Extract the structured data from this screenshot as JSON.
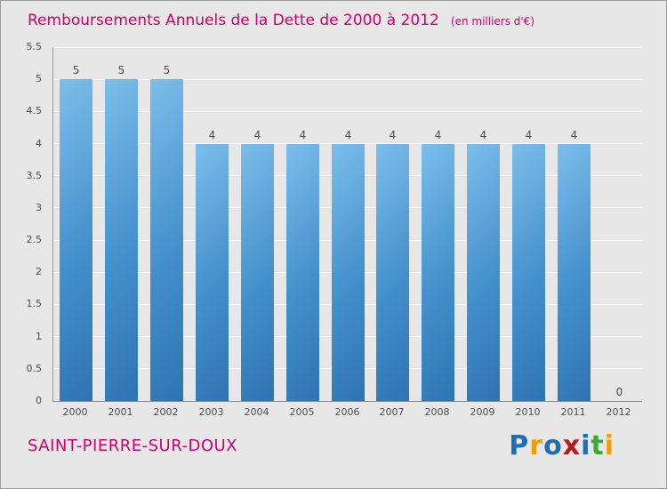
{
  "title": "Remboursements Annuels de la Dette de 2000 à 2012",
  "subtitle": "(en milliers d'€)",
  "footer": {
    "commune": "SAINT-PIERRE-SUR-DOUX"
  },
  "logo": {
    "letters": [
      {
        "ch": "P",
        "color": "#1e6db6"
      },
      {
        "ch": "r",
        "color": "#f59c00"
      },
      {
        "ch": "o",
        "color": "#1e6db6"
      },
      {
        "ch": "x",
        "color": "#c0181a"
      },
      {
        "ch": "i",
        "color": "#1e6db6"
      },
      {
        "ch": "t",
        "color": "#3aaa35"
      },
      {
        "ch": "i",
        "color": "#f59c00"
      }
    ]
  },
  "colors": {
    "title": "#d10069",
    "background": "#e7e7e7",
    "axis": "#8a8a8a",
    "gridline": "#ffffff",
    "tick_text": "#4d4d4d"
  },
  "chart_data": {
    "type": "bar",
    "title": "Remboursements Annuels de la Dette de 2000 à 2012",
    "subtitle": "(en milliers d'€)",
    "xlabel": "",
    "ylabel": "",
    "categories": [
      "2000",
      "2001",
      "2002",
      "2003",
      "2004",
      "2005",
      "2006",
      "2007",
      "2008",
      "2009",
      "2010",
      "2011",
      "2012"
    ],
    "values": [
      5,
      5,
      5,
      4,
      4,
      4,
      4,
      4,
      4,
      4,
      4,
      4,
      0
    ],
    "ylim": [
      0,
      5.5
    ],
    "ytick_step": 0.5,
    "yticks": [
      "0",
      "0.5",
      "1",
      "1.5",
      "2",
      "2.5",
      "3",
      "3.5",
      "4",
      "4.5",
      "5",
      "5.5"
    ],
    "grid": true,
    "legend": "none",
    "bar_colors": [
      "#7cbeea",
      "#4390cc",
      "#2d74b2"
    ]
  }
}
